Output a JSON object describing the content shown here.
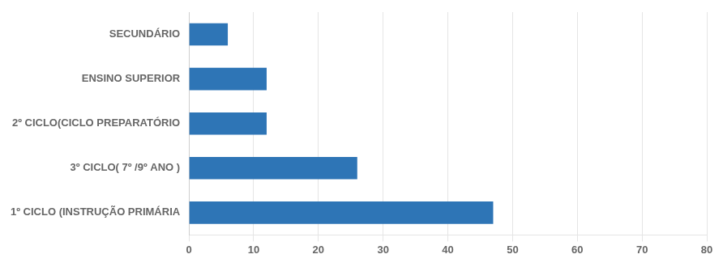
{
  "chart_data": {
    "type": "bar",
    "orientation": "horizontal",
    "categories": [
      "1º CICLO (INSTRUÇÃO PRIMÁRIA",
      "3º CICLO( 7º /9º ANO )",
      "2º CICLO(CICLO PREPARATÓRIO",
      "ENSINO SUPERIOR",
      "SECUNDÁRIO"
    ],
    "values": [
      47,
      26,
      12,
      12,
      6
    ],
    "color": "#2E75B6",
    "xlim": [
      0,
      80
    ],
    "xticks": [
      0,
      10,
      20,
      30,
      40,
      50,
      60,
      70,
      80
    ],
    "grid": true
  }
}
